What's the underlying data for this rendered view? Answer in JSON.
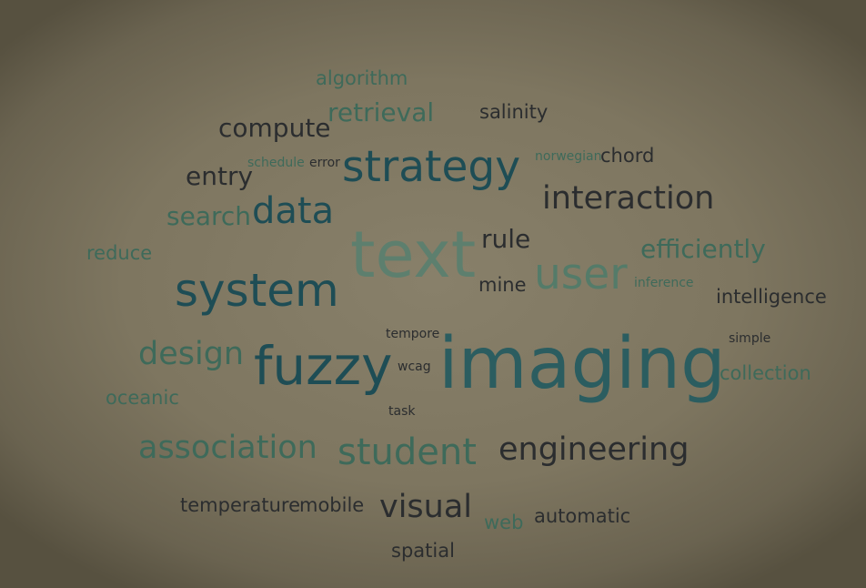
{
  "palette": {
    "dark": "#2b2d2f",
    "teal_dark": "#1e4d55",
    "teal": "#2b5d60",
    "green": "#3e6a5a",
    "green_light": "#547b69",
    "sage": "#5d7f6e"
  },
  "words": [
    {
      "text": "algorithm",
      "color": "green"
    },
    {
      "text": "retrieval",
      "color": "green"
    },
    {
      "text": "salinity",
      "color": "dark"
    },
    {
      "text": "compute",
      "color": "dark"
    },
    {
      "text": "schedule",
      "color": "green"
    },
    {
      "text": "error",
      "color": "dark"
    },
    {
      "text": "strategy",
      "color": "teal_dark"
    },
    {
      "text": "norwegian",
      "color": "green"
    },
    {
      "text": "chord",
      "color": "dark"
    },
    {
      "text": "entry",
      "color": "dark"
    },
    {
      "text": "search",
      "color": "green"
    },
    {
      "text": "data",
      "color": "teal_dark"
    },
    {
      "text": "interaction",
      "color": "dark"
    },
    {
      "text": "reduce",
      "color": "green"
    },
    {
      "text": "text",
      "color": "sage"
    },
    {
      "text": "rule",
      "color": "dark"
    },
    {
      "text": "efficiently",
      "color": "green"
    },
    {
      "text": "user",
      "color": "green_light"
    },
    {
      "text": "mine",
      "color": "dark"
    },
    {
      "text": "inference",
      "color": "green"
    },
    {
      "text": "system",
      "color": "teal_dark"
    },
    {
      "text": "intelligence",
      "color": "dark"
    },
    {
      "text": "tempore",
      "color": "dark"
    },
    {
      "text": "simple",
      "color": "dark"
    },
    {
      "text": "design",
      "color": "green"
    },
    {
      "text": "fuzzy",
      "color": "teal_dark"
    },
    {
      "text": "wcag",
      "color": "dark"
    },
    {
      "text": "imaging",
      "color": "teal"
    },
    {
      "text": "collection",
      "color": "green"
    },
    {
      "text": "oceanic",
      "color": "green"
    },
    {
      "text": "task",
      "color": "dark"
    },
    {
      "text": "association",
      "color": "green"
    },
    {
      "text": "student",
      "color": "green"
    },
    {
      "text": "engineering",
      "color": "dark"
    },
    {
      "text": "temperature",
      "color": "dark"
    },
    {
      "text": "mobile",
      "color": "dark"
    },
    {
      "text": "visual",
      "color": "dark"
    },
    {
      "text": "web",
      "color": "green"
    },
    {
      "text": "automatic",
      "color": "dark"
    },
    {
      "text": "spatial",
      "color": "dark"
    }
  ]
}
